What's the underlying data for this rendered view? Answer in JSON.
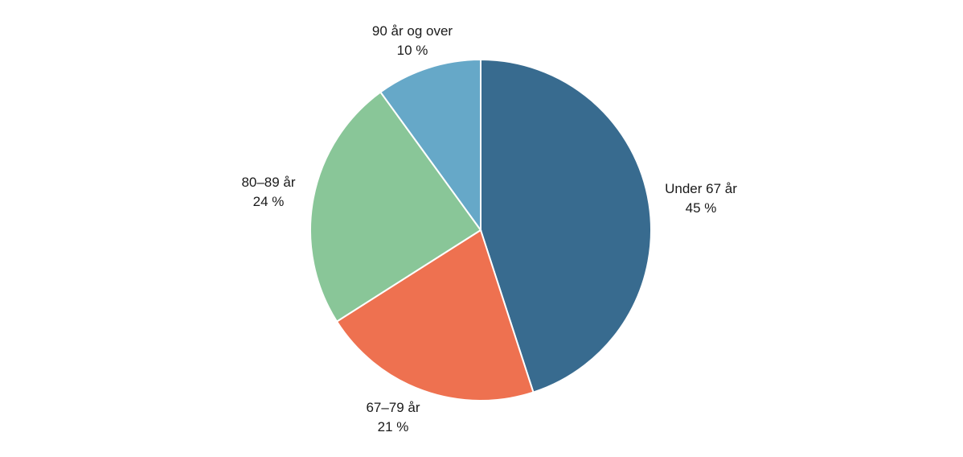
{
  "chart_data": {
    "type": "pie",
    "title": "",
    "start": "top",
    "direction": "clockwise",
    "slices": [
      {
        "label": "Under 67 år",
        "value": 45,
        "value_label": "45 %",
        "color": "#386b8f"
      },
      {
        "label": "67–79 år",
        "value": 21,
        "value_label": "21 %",
        "color": "#ee7150"
      },
      {
        "label": "80–89 år",
        "value": 24,
        "value_label": "24 %",
        "color": "#89c698"
      },
      {
        "label": "90 år og over",
        "value": 10,
        "value_label": "10 %",
        "color": "#66a8c8"
      }
    ]
  }
}
